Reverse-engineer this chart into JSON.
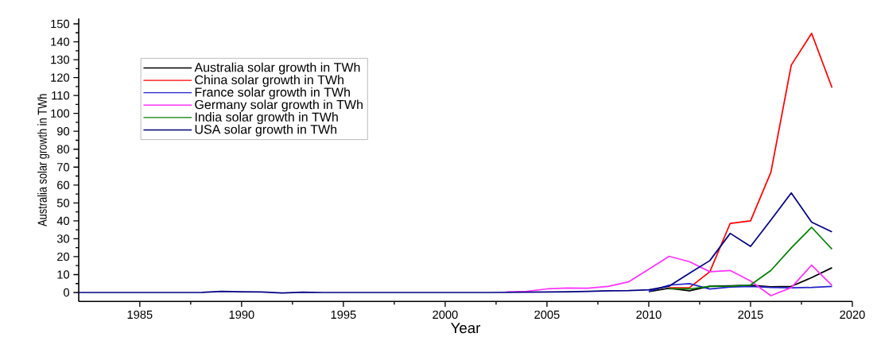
{
  "chart_data": {
    "type": "line",
    "xlabel": "Year",
    "ylabel": "Australia solar growth in TWh",
    "x": [
      1982,
      1983,
      1984,
      1985,
      1986,
      1987,
      1988,
      1989,
      1990,
      1991,
      1992,
      1993,
      1994,
      1995,
      1996,
      1997,
      1998,
      1999,
      2000,
      2001,
      2002,
      2003,
      2004,
      2005,
      2006,
      2007,
      2008,
      2009,
      2010,
      2011,
      2012,
      2013,
      2014,
      2015,
      2016,
      2017,
      2018,
      2019
    ],
    "series": [
      {
        "name": "Australia solar growth in TWh",
        "color": "#000000",
        "values": [
          null,
          null,
          null,
          null,
          null,
          null,
          null,
          null,
          null,
          null,
          null,
          null,
          null,
          null,
          null,
          null,
          null,
          null,
          null,
          null,
          null,
          null,
          null,
          null,
          null,
          null,
          null,
          null,
          0.5,
          2.4,
          0.9,
          3.5,
          3.7,
          4,
          3.2,
          3.4,
          8.3,
          13.8
        ]
      },
      {
        "name": "China solar growth in TWh",
        "color": "#ff0000",
        "values": [
          null,
          null,
          null,
          null,
          null,
          null,
          null,
          null,
          null,
          null,
          null,
          null,
          null,
          null,
          null,
          null,
          null,
          null,
          null,
          null,
          null,
          null,
          null,
          null,
          null,
          null,
          null,
          null,
          null,
          2.6,
          2.7,
          11.6,
          38.6,
          40,
          67.2,
          127,
          144.7,
          114.4
        ]
      },
      {
        "name": "France solar growth in TWh",
        "color": "#2323c8",
        "values": [
          null,
          null,
          null,
          null,
          null,
          null,
          null,
          null,
          null,
          null,
          null,
          null,
          null,
          null,
          null,
          null,
          null,
          null,
          null,
          null,
          null,
          null,
          null,
          null,
          null,
          null,
          null,
          null,
          0.6,
          4.1,
          4.9,
          1.9,
          3,
          3.4,
          2.8,
          2.6,
          2.8,
          3.4
        ]
      },
      {
        "name": "Germany solar growth in TWh",
        "color": "#ff33ff",
        "values": [
          null,
          null,
          null,
          null,
          null,
          null,
          null,
          null,
          null,
          null,
          null,
          null,
          null,
          null,
          null,
          null,
          null,
          null,
          null,
          null,
          null,
          0.3,
          0.6,
          2,
          2.5,
          2.4,
          3.4,
          5.9,
          13,
          20.2,
          17.2,
          11.6,
          12.3,
          6.4,
          -1.8,
          2.7,
          15.3,
          3.9
        ]
      },
      {
        "name": "India solar growth in TWh",
        "color": "#008000",
        "values": [
          null,
          null,
          null,
          null,
          null,
          null,
          null,
          null,
          null,
          null,
          null,
          null,
          null,
          null,
          null,
          null,
          null,
          null,
          null,
          null,
          null,
          null,
          null,
          null,
          null,
          null,
          null,
          null,
          null,
          2,
          2,
          3.4,
          3.5,
          4.2,
          12.3,
          24.9,
          36.4,
          24.2
        ]
      },
      {
        "name": "USA solar growth in TWh",
        "color": "#000080",
        "values": [
          0,
          0,
          0,
          0,
          0,
          0,
          0,
          0.6,
          0.4,
          0.3,
          -0.3,
          0.2,
          0,
          0,
          0,
          0,
          0,
          0,
          0,
          0,
          0,
          0.1,
          0.2,
          0.3,
          0.4,
          0.6,
          0.9,
          1,
          1.5,
          3.5,
          10.8,
          17.8,
          33,
          25.7,
          40.5,
          55.6,
          39.3,
          33.8
        ]
      }
    ],
    "xlim": [
      1982,
      2020
    ],
    "ylim": [
      -5,
      153
    ],
    "xticks": [
      1985,
      1990,
      1995,
      2000,
      2005,
      2010,
      2015,
      2020
    ],
    "yticks": [
      0,
      10,
      20,
      30,
      40,
      50,
      60,
      70,
      80,
      90,
      100,
      110,
      120,
      130,
      140,
      150
    ],
    "legend": "top left",
    "grid": false,
    "marker": "none",
    "line_style": "solid"
  }
}
